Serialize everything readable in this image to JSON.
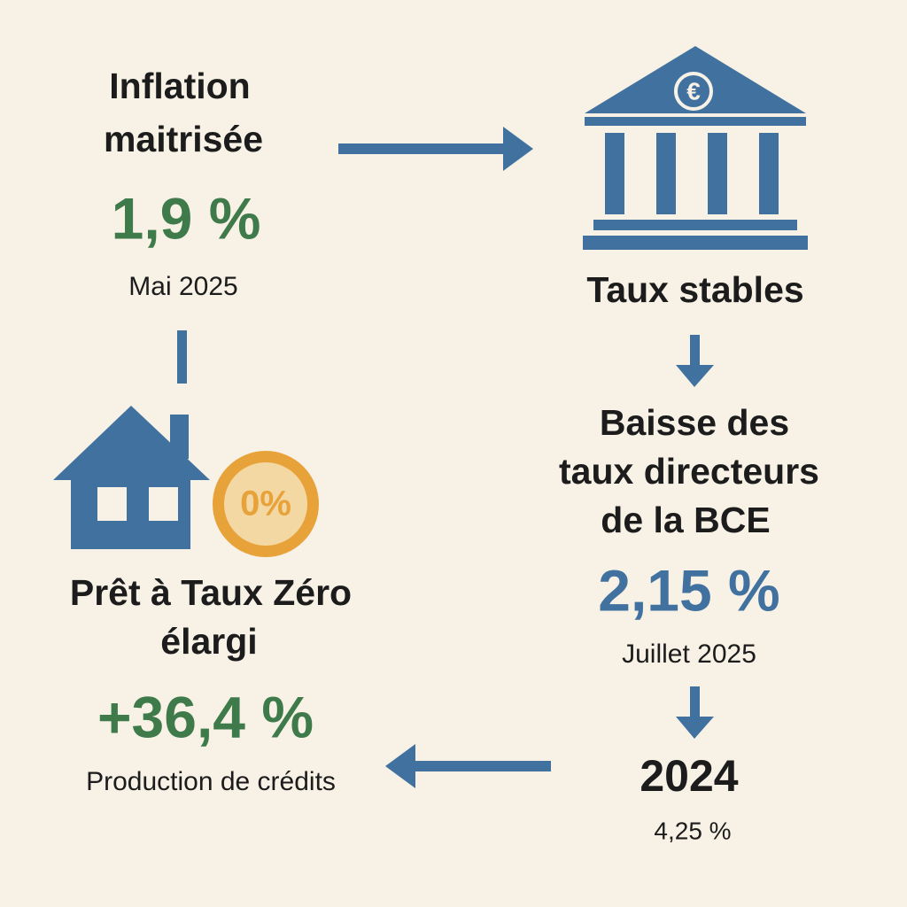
{
  "inflation": {
    "title": [
      "Inflation",
      "maitrisée"
    ],
    "value": "1,9 %",
    "date": "Mai 2025"
  },
  "bce": {
    "icon_symbol": "€",
    "status": "Taux stables",
    "title": [
      "Baisse des",
      "taux directeurs",
      "de la BCE"
    ],
    "value": "2,15 %",
    "date": "Juillet 2025",
    "previous": {
      "year": "2024",
      "value": "4,25 %"
    }
  },
  "ptz": {
    "badge": "0%",
    "title": [
      "Prêt à Taux Zéro",
      "élargi"
    ],
    "value": "+36,4 %",
    "caption": "Production de crédits"
  }
}
